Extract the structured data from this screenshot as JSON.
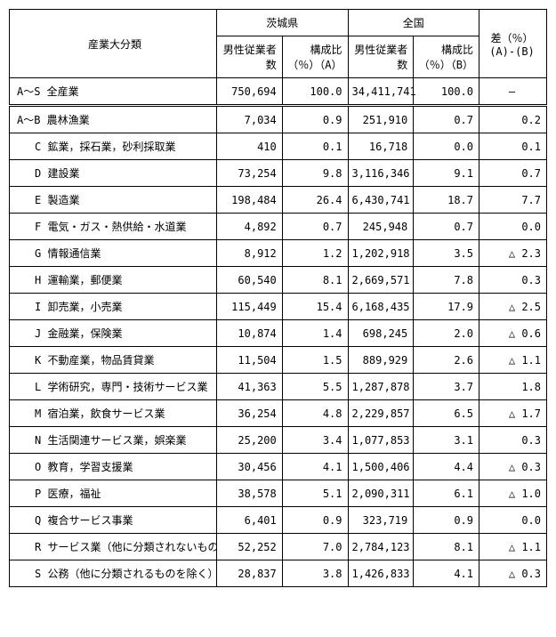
{
  "table": {
    "type": "table",
    "background_color": "#ffffff",
    "border_color": "#000000",
    "text_color": "#000000",
    "font_size_pt": 9,
    "font_family": "MS Gothic",
    "columns": {
      "category": "産業大分類",
      "ibaraki": "茨城県",
      "national": "全国",
      "ibaraki_male": "男性従業者数",
      "ibaraki_pct": "構成比（％）（A）",
      "national_male": "男性従業者数",
      "national_pct": "構成比（％）（B）",
      "diff": "差（％）(A)-(B)"
    },
    "total_row": {
      "label": "A～S 全産業",
      "ibaraki_male": "750,694",
      "ibaraki_pct": "100.0",
      "national_male": "34,411,741",
      "national_pct": "100.0",
      "diff": "―"
    },
    "rows": [
      {
        "label": "A～B 農林漁業",
        "indent": false,
        "ibaraki_male": "7,034",
        "ibaraki_pct": "0.9",
        "national_male": "251,910",
        "national_pct": "0.7",
        "diff": "0.2"
      },
      {
        "label": "C 鉱業，採石業，砂利採取業",
        "indent": true,
        "ibaraki_male": "410",
        "ibaraki_pct": "0.1",
        "national_male": "16,718",
        "national_pct": "0.0",
        "diff": "0.1"
      },
      {
        "label": "D 建設業",
        "indent": true,
        "ibaraki_male": "73,254",
        "ibaraki_pct": "9.8",
        "national_male": "3,116,346",
        "national_pct": "9.1",
        "diff": "0.7"
      },
      {
        "label": "E 製造業",
        "indent": true,
        "ibaraki_male": "198,484",
        "ibaraki_pct": "26.4",
        "national_male": "6,430,741",
        "national_pct": "18.7",
        "diff": "7.7"
      },
      {
        "label": "F 電気・ガス・熱供給・水道業",
        "indent": true,
        "ibaraki_male": "4,892",
        "ibaraki_pct": "0.7",
        "national_male": "245,948",
        "national_pct": "0.7",
        "diff": "0.0"
      },
      {
        "label": "G 情報通信業",
        "indent": true,
        "ibaraki_male": "8,912",
        "ibaraki_pct": "1.2",
        "national_male": "1,202,918",
        "national_pct": "3.5",
        "diff": "△ 2.3"
      },
      {
        "label": "H 運輸業，郵便業",
        "indent": true,
        "ibaraki_male": "60,540",
        "ibaraki_pct": "8.1",
        "national_male": "2,669,571",
        "national_pct": "7.8",
        "diff": "0.3"
      },
      {
        "label": "I 卸売業，小売業",
        "indent": true,
        "ibaraki_male": "115,449",
        "ibaraki_pct": "15.4",
        "national_male": "6,168,435",
        "national_pct": "17.9",
        "diff": "△ 2.5"
      },
      {
        "label": "J 金融業，保険業",
        "indent": true,
        "ibaraki_male": "10,874",
        "ibaraki_pct": "1.4",
        "national_male": "698,245",
        "national_pct": "2.0",
        "diff": "△ 0.6"
      },
      {
        "label": "K 不動産業，物品賃貸業",
        "indent": true,
        "ibaraki_male": "11,504",
        "ibaraki_pct": "1.5",
        "national_male": "889,929",
        "national_pct": "2.6",
        "diff": "△ 1.1"
      },
      {
        "label": "L 学術研究，専門・技術サービス業",
        "indent": true,
        "ibaraki_male": "41,363",
        "ibaraki_pct": "5.5",
        "national_male": "1,287,878",
        "national_pct": "3.7",
        "diff": "1.8"
      },
      {
        "label": "M 宿泊業，飲食サービス業",
        "indent": true,
        "ibaraki_male": "36,254",
        "ibaraki_pct": "4.8",
        "national_male": "2,229,857",
        "national_pct": "6.5",
        "diff": "△ 1.7"
      },
      {
        "label": "N 生活関連サービス業，娯楽業",
        "indent": true,
        "ibaraki_male": "25,200",
        "ibaraki_pct": "3.4",
        "national_male": "1,077,853",
        "national_pct": "3.1",
        "diff": "0.3"
      },
      {
        "label": "O 教育，学習支援業",
        "indent": true,
        "ibaraki_male": "30,456",
        "ibaraki_pct": "4.1",
        "national_male": "1,500,406",
        "national_pct": "4.4",
        "diff": "△ 0.3"
      },
      {
        "label": "P 医療，福祉",
        "indent": true,
        "ibaraki_male": "38,578",
        "ibaraki_pct": "5.1",
        "national_male": "2,090,311",
        "national_pct": "6.1",
        "diff": "△ 1.0"
      },
      {
        "label": "Q 複合サービス事業",
        "indent": true,
        "ibaraki_male": "6,401",
        "ibaraki_pct": "0.9",
        "national_male": "323,719",
        "national_pct": "0.9",
        "diff": "0.0"
      },
      {
        "label": "R サービス業（他に分類されないもの）",
        "indent": true,
        "ibaraki_male": "52,252",
        "ibaraki_pct": "7.0",
        "national_male": "2,784,123",
        "national_pct": "8.1",
        "diff": "△ 1.1"
      },
      {
        "label": "S 公務（他に分類されるものを除く）",
        "indent": true,
        "ibaraki_male": "28,837",
        "ibaraki_pct": "3.8",
        "national_male": "1,426,833",
        "national_pct": "4.1",
        "diff": "△ 0.3"
      }
    ]
  }
}
